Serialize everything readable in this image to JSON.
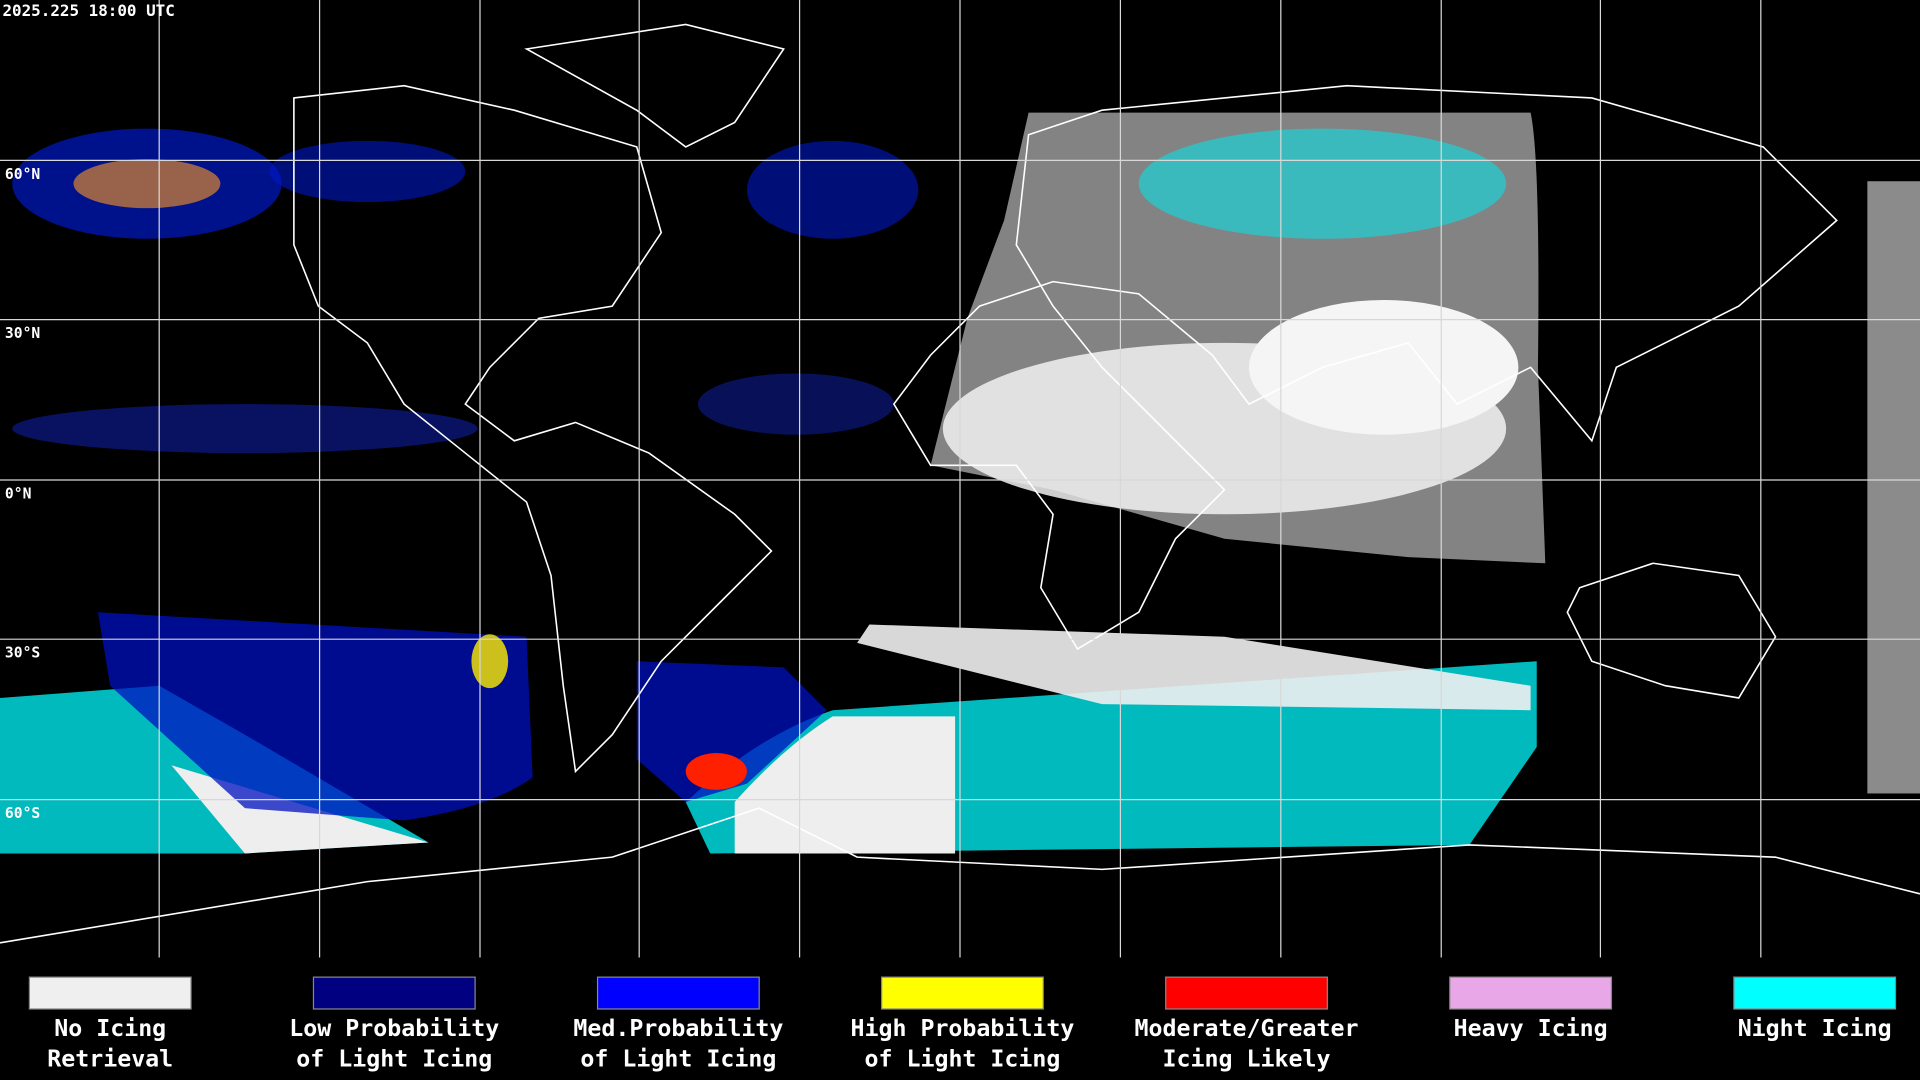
{
  "header": {
    "timestamp": "2025.225 18:00 UTC"
  },
  "map": {
    "lat_labels": [
      "60°N",
      "30°N",
      "0°N",
      "30°S",
      "60°S"
    ]
  },
  "legend": [
    {
      "lines": [
        "No Icing",
        "Retrieval"
      ],
      "color": "#efefef"
    },
    {
      "lines": [
        "Low Probability",
        "of Light Icing"
      ],
      "color": "#000080"
    },
    {
      "lines": [
        "Med.Probability",
        "of Light Icing"
      ],
      "color": "#0000ff"
    },
    {
      "lines": [
        "High Probability",
        "of Light Icing"
      ],
      "color": "#ffff00"
    },
    {
      "lines": [
        "Moderate/Greater",
        "Icing Likely"
      ],
      "color": "#ff0000"
    },
    {
      "lines": [
        "Heavy Icing"
      ],
      "color": "#e8a8e8"
    },
    {
      "lines": [
        "Night Icing"
      ],
      "color": "#00ffff"
    }
  ]
}
